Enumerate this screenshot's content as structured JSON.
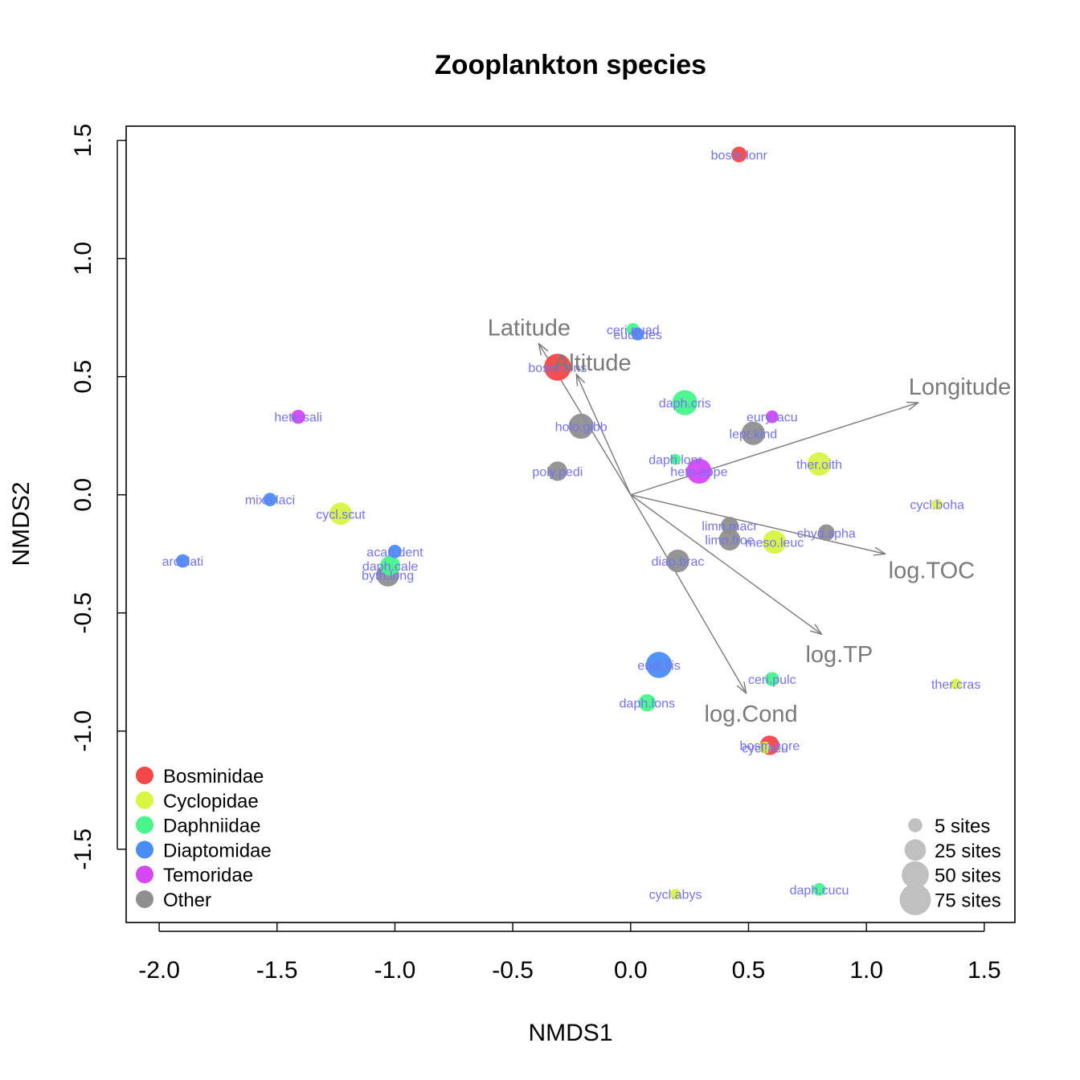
{
  "chart_data": {
    "type": "scatter",
    "title": "Zooplankton species",
    "xlabel": "NMDS1",
    "ylabel": "NMDS2",
    "xlim": [
      -2.14,
      1.63
    ],
    "ylim": [
      -1.81,
      1.56
    ],
    "xticks": [
      -2.0,
      -1.5,
      -1.0,
      -0.5,
      0.0,
      0.5,
      1.0,
      1.5
    ],
    "xtick_labels": [
      "-2.0",
      "-1.5",
      "-1.0",
      "-0.5",
      "0.0",
      "0.5",
      "1.0",
      "1.5"
    ],
    "yticks": [
      -1.5,
      -1.0,
      -0.5,
      0.0,
      0.5,
      1.0,
      1.5
    ],
    "ytick_labels": [
      "-1.5",
      "-1.0",
      "-0.5",
      "0.0",
      "0.5",
      "1.0",
      "1.5"
    ],
    "grid": false,
    "family_colors": {
      "Bosminidae": "#f44747",
      "Cyclopidae": "#d8f542",
      "Daphniidae": "#47f58c",
      "Diaptomidae": "#4a8cf5",
      "Temoridae": "#d347f5",
      "Other": "#8f8f8f"
    },
    "label_color": "#7474ee",
    "vector_color": "#7a7a7a",
    "species": [
      {
        "label": "bosm.lonr",
        "x": 0.46,
        "y": 1.44,
        "family": "Bosminidae",
        "sites": 8
      },
      {
        "label": "bosm.lons",
        "x": -0.31,
        "y": 0.54,
        "family": "Bosminidae",
        "sites": 50
      },
      {
        "label": "bosm.core",
        "x": 0.59,
        "y": -1.06,
        "family": "Bosminidae",
        "sites": 18
      },
      {
        "label": "cycl.scut",
        "x": -1.23,
        "y": -0.08,
        "family": "Cyclopidae",
        "sites": 28
      },
      {
        "label": "ther.oith",
        "x": 0.8,
        "y": 0.13,
        "family": "Cyclopidae",
        "sites": 33
      },
      {
        "label": "meso.leuc",
        "x": 0.61,
        "y": -0.2,
        "family": "Cyclopidae",
        "sites": 33
      },
      {
        "label": "cycl.boha",
        "x": 1.3,
        "y": -0.04,
        "family": "Cyclopidae",
        "sites": 1
      },
      {
        "label": "ther.cras",
        "x": 1.38,
        "y": -0.8,
        "family": "Cyclopidae",
        "sites": 1
      },
      {
        "label": "cycl.acu",
        "x": 0.57,
        "y": -1.07,
        "family": "Cyclopidae",
        "sites": 2
      },
      {
        "label": "cycl.abys",
        "x": 0.19,
        "y": -1.69,
        "family": "Cyclopidae",
        "sites": 1
      },
      {
        "label": "ceri.quad",
        "x": 0.01,
        "y": 0.7,
        "family": "Daphniidae",
        "sites": 3
      },
      {
        "label": "daph.cris",
        "x": 0.23,
        "y": 0.39,
        "family": "Daphniidae",
        "sites": 40
      },
      {
        "label": "daph.lonr",
        "x": 0.19,
        "y": 0.15,
        "family": "Daphniidae",
        "sites": 1
      },
      {
        "label": "daph.cale",
        "x": -1.02,
        "y": -0.3,
        "family": "Daphniidae",
        "sites": 20
      },
      {
        "label": "ceri.pulc",
        "x": 0.6,
        "y": -0.78,
        "family": "Daphniidae",
        "sites": 5
      },
      {
        "label": "daph.lons",
        "x": 0.07,
        "y": -0.88,
        "family": "Daphniidae",
        "sites": 12
      },
      {
        "label": "daph.cucu",
        "x": 0.8,
        "y": -1.67,
        "family": "Daphniidae",
        "sites": 3
      },
      {
        "label": "eudi.des",
        "x": 0.03,
        "y": 0.68,
        "family": "Diaptomidae",
        "sites": 3
      },
      {
        "label": "mixo.laci",
        "x": -1.53,
        "y": -0.02,
        "family": "Diaptomidae",
        "sites": 4
      },
      {
        "label": "acan.dent",
        "x": -1.0,
        "y": -0.24,
        "family": "Diaptomidae",
        "sites": 4
      },
      {
        "label": "arct.lati",
        "x": -1.9,
        "y": -0.28,
        "family": "Diaptomidae",
        "sites": 4
      },
      {
        "label": "eudi.ilis",
        "x": 0.12,
        "y": -0.72,
        "family": "Diaptomidae",
        "sites": 45
      },
      {
        "label": "hete.sali",
        "x": -1.41,
        "y": 0.33,
        "family": "Temoridae",
        "sites": 5
      },
      {
        "label": "eury.lacu",
        "x": 0.6,
        "y": 0.33,
        "family": "Temoridae",
        "sites": 3
      },
      {
        "label": "hete.appe",
        "x": 0.29,
        "y": 0.1,
        "family": "Temoridae",
        "sites": 40
      },
      {
        "label": "holo.gibb",
        "x": -0.21,
        "y": 0.29,
        "family": "Other",
        "sites": 40
      },
      {
        "label": "lept.kind",
        "x": 0.52,
        "y": 0.26,
        "family": "Other",
        "sites": 33
      },
      {
        "label": "poly.pedi",
        "x": -0.31,
        "y": 0.1,
        "family": "Other",
        "sites": 18
      },
      {
        "label": "limn.macr",
        "x": 0.42,
        "y": -0.13,
        "family": "Other",
        "sites": 12
      },
      {
        "label": "limn.froe",
        "x": 0.42,
        "y": -0.19,
        "family": "Other",
        "sites": 25
      },
      {
        "label": "chyd.spha",
        "x": 0.83,
        "y": -0.16,
        "family": "Other",
        "sites": 10
      },
      {
        "label": "diap.brac",
        "x": 0.2,
        "y": -0.28,
        "family": "Other",
        "sites": 30
      },
      {
        "label": "byth.long",
        "x": -1.03,
        "y": -0.34,
        "family": "Other",
        "sites": 30
      }
    ],
    "vectors": [
      {
        "label": "Latitude",
        "x": -0.39,
        "y": 0.64
      },
      {
        "label": "Altitude",
        "x": -0.23,
        "y": 0.51
      },
      {
        "label": "Longitude",
        "x": 1.22,
        "y": 0.39
      },
      {
        "label": "log.TOC",
        "x": 1.08,
        "y": -0.25
      },
      {
        "label": "log.TP",
        "x": 0.81,
        "y": -0.59
      },
      {
        "label": "log.Cond",
        "x": 0.49,
        "y": -0.84
      }
    ],
    "legend_families": [
      "Bosminidae",
      "Cyclopidae",
      "Daphniidae",
      "Diaptomidae",
      "Temoridae",
      "Other"
    ],
    "legend_families_position": "bottom-left",
    "legend_sizes": [
      {
        "label": "5 sites",
        "sites": 5
      },
      {
        "label": "25 sites",
        "sites": 25
      },
      {
        "label": "50 sites",
        "sites": 50
      },
      {
        "label": "75 sites",
        "sites": 75
      }
    ],
    "legend_sizes_position": "bottom-right",
    "legend_sizes_color": "#c0c0c0"
  }
}
